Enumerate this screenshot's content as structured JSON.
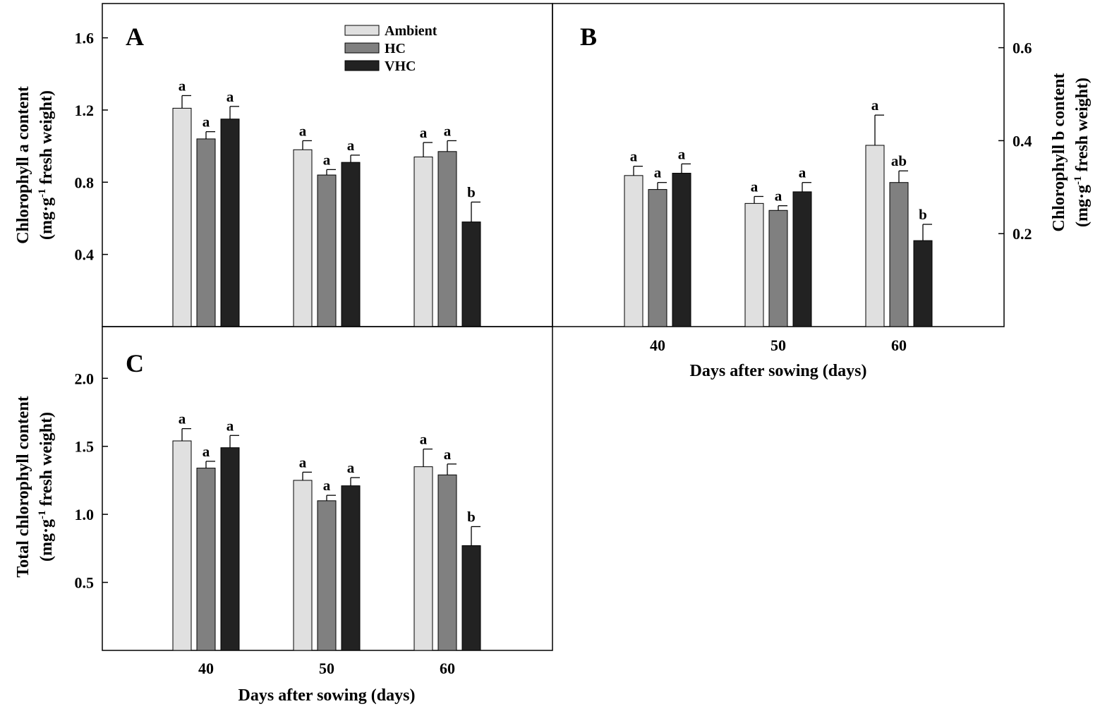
{
  "series_styles": [
    {
      "name": "Ambient",
      "color": "#e0e0e0"
    },
    {
      "name": "HC",
      "color": "#808080"
    },
    {
      "name": "VHC",
      "color": "#222222"
    }
  ],
  "chart_data": [
    {
      "type": "bar",
      "panel": "A",
      "categories": [
        "40",
        "50",
        "60"
      ],
      "series": [
        {
          "name": "Ambient",
          "values": [
            1.21,
            0.98,
            0.94
          ],
          "errors": [
            0.07,
            0.05,
            0.08
          ],
          "labels": [
            "a",
            "a",
            "a"
          ]
        },
        {
          "name": "HC",
          "values": [
            1.04,
            0.84,
            0.97
          ],
          "errors": [
            0.04,
            0.03,
            0.06
          ],
          "labels": [
            "a",
            "a",
            "a"
          ]
        },
        {
          "name": "VHC",
          "values": [
            1.15,
            0.91,
            0.58
          ],
          "errors": [
            0.07,
            0.04,
            0.11
          ],
          "labels": [
            "a",
            "a",
            "b"
          ]
        }
      ],
      "yticks": [
        "0.4",
        "0.8",
        "1.2",
        "1.6"
      ],
      "ylim": [
        0,
        1.79
      ],
      "ylabel_line1": "Chlorophyll a content",
      "ylabel_line2_pre": "(mg·g",
      "ylabel_sup": "-1",
      "ylabel_line2_post": " fresh weight)",
      "legend": [
        "Ambient",
        "HC",
        "VHC"
      ]
    },
    {
      "type": "bar",
      "panel": "B",
      "categories": [
        "40",
        "50",
        "60"
      ],
      "series": [
        {
          "name": "Ambient",
          "values": [
            0.325,
            0.265,
            0.39
          ],
          "errors": [
            0.02,
            0.015,
            0.065
          ],
          "labels": [
            "a",
            "a",
            "a"
          ]
        },
        {
          "name": "HC",
          "values": [
            0.295,
            0.25,
            0.31
          ],
          "errors": [
            0.015,
            0.01,
            0.025
          ],
          "labels": [
            "a",
            "a",
            "ab"
          ]
        },
        {
          "name": "VHC",
          "values": [
            0.33,
            0.29,
            0.185
          ],
          "errors": [
            0.02,
            0.02,
            0.035
          ],
          "labels": [
            "a",
            "a",
            "b"
          ]
        }
      ],
      "yticks": [
        "0.2",
        "0.4",
        "0.6"
      ],
      "ylim": [
        0,
        0.695
      ],
      "ylabel_line1": "Chlorophyll b content",
      "ylabel_line2_pre": "(mg·g",
      "ylabel_sup": "-1",
      "ylabel_line2_post": " fresh weight)",
      "xticks": [
        "40",
        "50",
        "60"
      ],
      "xlabel": "Days after sowing (days)"
    },
    {
      "type": "bar",
      "panel": "C",
      "categories": [
        "40",
        "50",
        "60"
      ],
      "series": [
        {
          "name": "Ambient",
          "values": [
            1.54,
            1.25,
            1.35
          ],
          "errors": [
            0.09,
            0.06,
            0.13
          ],
          "labels": [
            "a",
            "a",
            "a"
          ]
        },
        {
          "name": "HC",
          "values": [
            1.34,
            1.1,
            1.29
          ],
          "errors": [
            0.05,
            0.04,
            0.08
          ],
          "labels": [
            "a",
            "a",
            "a"
          ]
        },
        {
          "name": "VHC",
          "values": [
            1.49,
            1.21,
            0.77
          ],
          "errors": [
            0.09,
            0.06,
            0.14
          ],
          "labels": [
            "a",
            "a",
            "b"
          ]
        }
      ],
      "yticks": [
        "0.5",
        "1.0",
        "1.5",
        "2.0"
      ],
      "ylim": [
        0,
        2.38
      ],
      "ylabel_line1": "Total chlorophyll content",
      "ylabel_line2_pre": "(mg·g",
      "ylabel_sup": "-1",
      "ylabel_line2_post": " fresh weight)",
      "xticks": [
        "40",
        "50",
        "60"
      ],
      "xlabel": "Days after sowing (days)"
    }
  ]
}
